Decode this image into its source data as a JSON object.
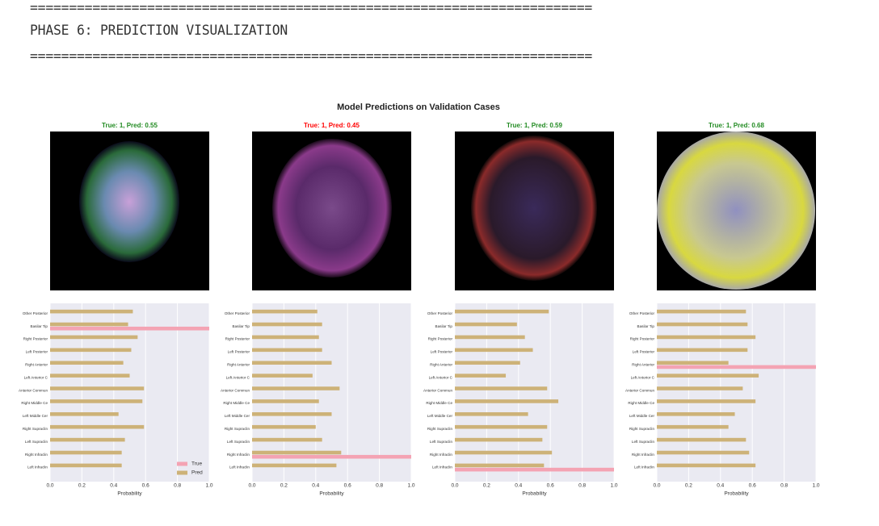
{
  "console": {
    "rules": [
      "========================================================================",
      "========================================================================"
    ],
    "heading": "PHASE 6: PREDICTION VISUALIZATION"
  },
  "figure_title": "Model Predictions on Validation Cases",
  "chart_data": [
    {
      "type": "barh",
      "title": "True: 1, Pred: 0.55",
      "title_color": "#228b22",
      "categories": [
        "Other Posterior",
        "Basilar Tip",
        "Right Posterior",
        "Left Posterior",
        "Right Anterior",
        "Left Anterior C",
        "Anterior Commun",
        "Right Middle Ce",
        "Left Middle Cer",
        "Right Supraclin",
        "Left Supraclin",
        "Right Infraclin",
        "Left Infraclin"
      ],
      "series": [
        {
          "name": "True",
          "color": "#f4a3b3",
          "values": [
            0,
            1,
            0,
            0,
            0,
            0,
            0,
            0,
            0,
            0,
            0,
            0,
            0
          ]
        },
        {
          "name": "Pred",
          "color": "#cdb278",
          "values": [
            0.52,
            0.49,
            0.55,
            0.51,
            0.46,
            0.5,
            0.59,
            0.58,
            0.43,
            0.59,
            0.47,
            0.45,
            0.45
          ]
        }
      ],
      "xlim": [
        0,
        1
      ],
      "xticks": [
        {
          "value": 0,
          "label": "0.0"
        },
        0.2,
        0.4,
        0.6,
        0.8,
        {
          "value": 1,
          "label": "1.0"
        }
      ],
      "xlabel": "Probability",
      "legend": "lower right",
      "grid": true
    },
    {
      "type": "barh",
      "title": "True: 1, Pred: 0.45",
      "title_color": "#ff0000",
      "categories": [
        "Other Posterior",
        "Basilar Tip",
        "Right Posterior",
        "Left Posterior",
        "Right Anterior",
        "Left Anterior C",
        "Anterior Commun",
        "Right Middle Ce",
        "Left Middle Cer",
        "Right Supraclin",
        "Left Supraclin",
        "Right Infraclin",
        "Left Infraclin"
      ],
      "series": [
        {
          "color": "#f4a3b3",
          "values": [
            0,
            0,
            0,
            0,
            0,
            0,
            0,
            0,
            0,
            0,
            0,
            1,
            0
          ]
        },
        {
          "color": "#cdb278",
          "values": [
            0.41,
            0.44,
            0.42,
            0.44,
            0.5,
            0.38,
            0.55,
            0.42,
            0.5,
            0.4,
            0.44,
            0.56,
            0.53
          ]
        }
      ],
      "xlim": [
        0,
        1
      ],
      "xticks": [
        {
          "value": 0,
          "label": "0.0"
        },
        0.2,
        0.4,
        0.6,
        0.8,
        {
          "value": 1,
          "label": "1.0"
        }
      ],
      "xlabel": "Probability",
      "grid": true
    },
    {
      "type": "barh",
      "title": "True: 1, Pred: 0.59",
      "title_color": "#228b22",
      "categories": [
        "Other Posterior",
        "Basilar Tip",
        "Right Posterior",
        "Left Posterior",
        "Right Anterior",
        "Left Anterior C",
        "Anterior Commun",
        "Right Middle Ce",
        "Left Middle Cer",
        "Right Supraclin",
        "Left Supraclin",
        "Right Infraclin",
        "Left Infraclin"
      ],
      "series": [
        {
          "color": "#f4a3b3",
          "values": [
            0,
            0,
            0,
            0,
            0,
            0,
            0,
            0,
            0,
            0,
            0,
            0,
            1
          ]
        },
        {
          "color": "#cdb278",
          "values": [
            0.59,
            0.39,
            0.44,
            0.49,
            0.41,
            0.32,
            0.58,
            0.65,
            0.46,
            0.58,
            0.55,
            0.61,
            0.56
          ]
        }
      ],
      "xlim": [
        0,
        1
      ],
      "xticks": [
        {
          "value": 0,
          "label": "0.0"
        },
        0.2,
        0.4,
        0.6,
        0.8,
        {
          "value": 1,
          "label": "1.0"
        }
      ],
      "xlabel": "Probability",
      "grid": true
    },
    {
      "type": "barh",
      "title": "True: 1, Pred: 0.68",
      "title_color": "#228b22",
      "categories": [
        "Other Posterior",
        "Basilar Tip",
        "Right Posterior",
        "Left Posterior",
        "Right Anterior",
        "Left Anterior C",
        "Anterior Commun",
        "Right Middle Ce",
        "Left Middle Cer",
        "Right Supraclin",
        "Left Supraclin",
        "Right Infraclin",
        "Left Infraclin"
      ],
      "series": [
        {
          "color": "#f4a3b3",
          "values": [
            0,
            0,
            0,
            0,
            1,
            0,
            0,
            0,
            0,
            0,
            0,
            0,
            0
          ]
        },
        {
          "color": "#cdb278",
          "values": [
            0.56,
            0.57,
            0.62,
            0.57,
            0.45,
            0.64,
            0.54,
            0.62,
            0.49,
            0.45,
            0.56,
            0.58,
            0.62
          ]
        }
      ],
      "xlim": [
        0,
        1
      ],
      "xticks": [
        {
          "value": 0,
          "label": "0.0"
        },
        0.2,
        0.4,
        0.6,
        0.8,
        {
          "value": 1,
          "label": "1.0"
        }
      ],
      "xlabel": "Probability",
      "grid": true
    }
  ]
}
